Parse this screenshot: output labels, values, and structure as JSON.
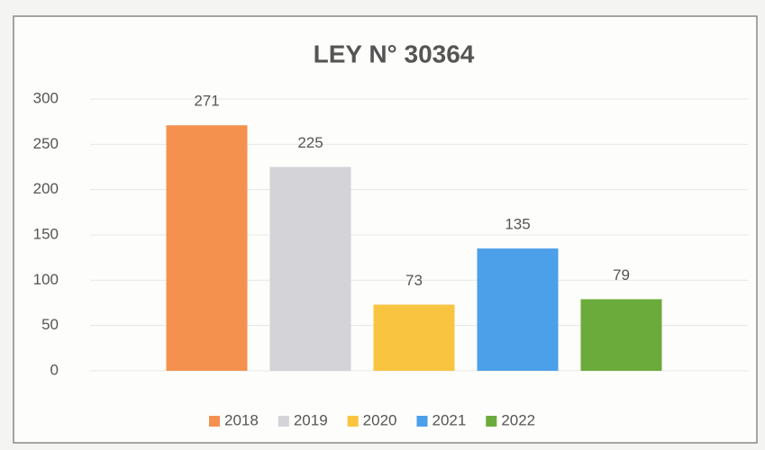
{
  "chart_data": {
    "type": "bar",
    "title": "LEY N° 30364",
    "series": [
      {
        "name": "2018",
        "color": "#f5914f",
        "values": [
          271
        ]
      },
      {
        "name": "2019",
        "color": "#d3d3d8",
        "values": [
          225
        ]
      },
      {
        "name": "2020",
        "color": "#f9c43f",
        "values": [
          73
        ]
      },
      {
        "name": "2021",
        "color": "#4c9fe9",
        "values": [
          135
        ]
      },
      {
        "name": "2022",
        "color": "#6aab3b",
        "values": [
          79
        ]
      }
    ],
    "ylim": [
      0,
      300
    ],
    "yticks": [
      0,
      50,
      100,
      150,
      200,
      250,
      300
    ],
    "grid": true,
    "legend": "bottom"
  }
}
